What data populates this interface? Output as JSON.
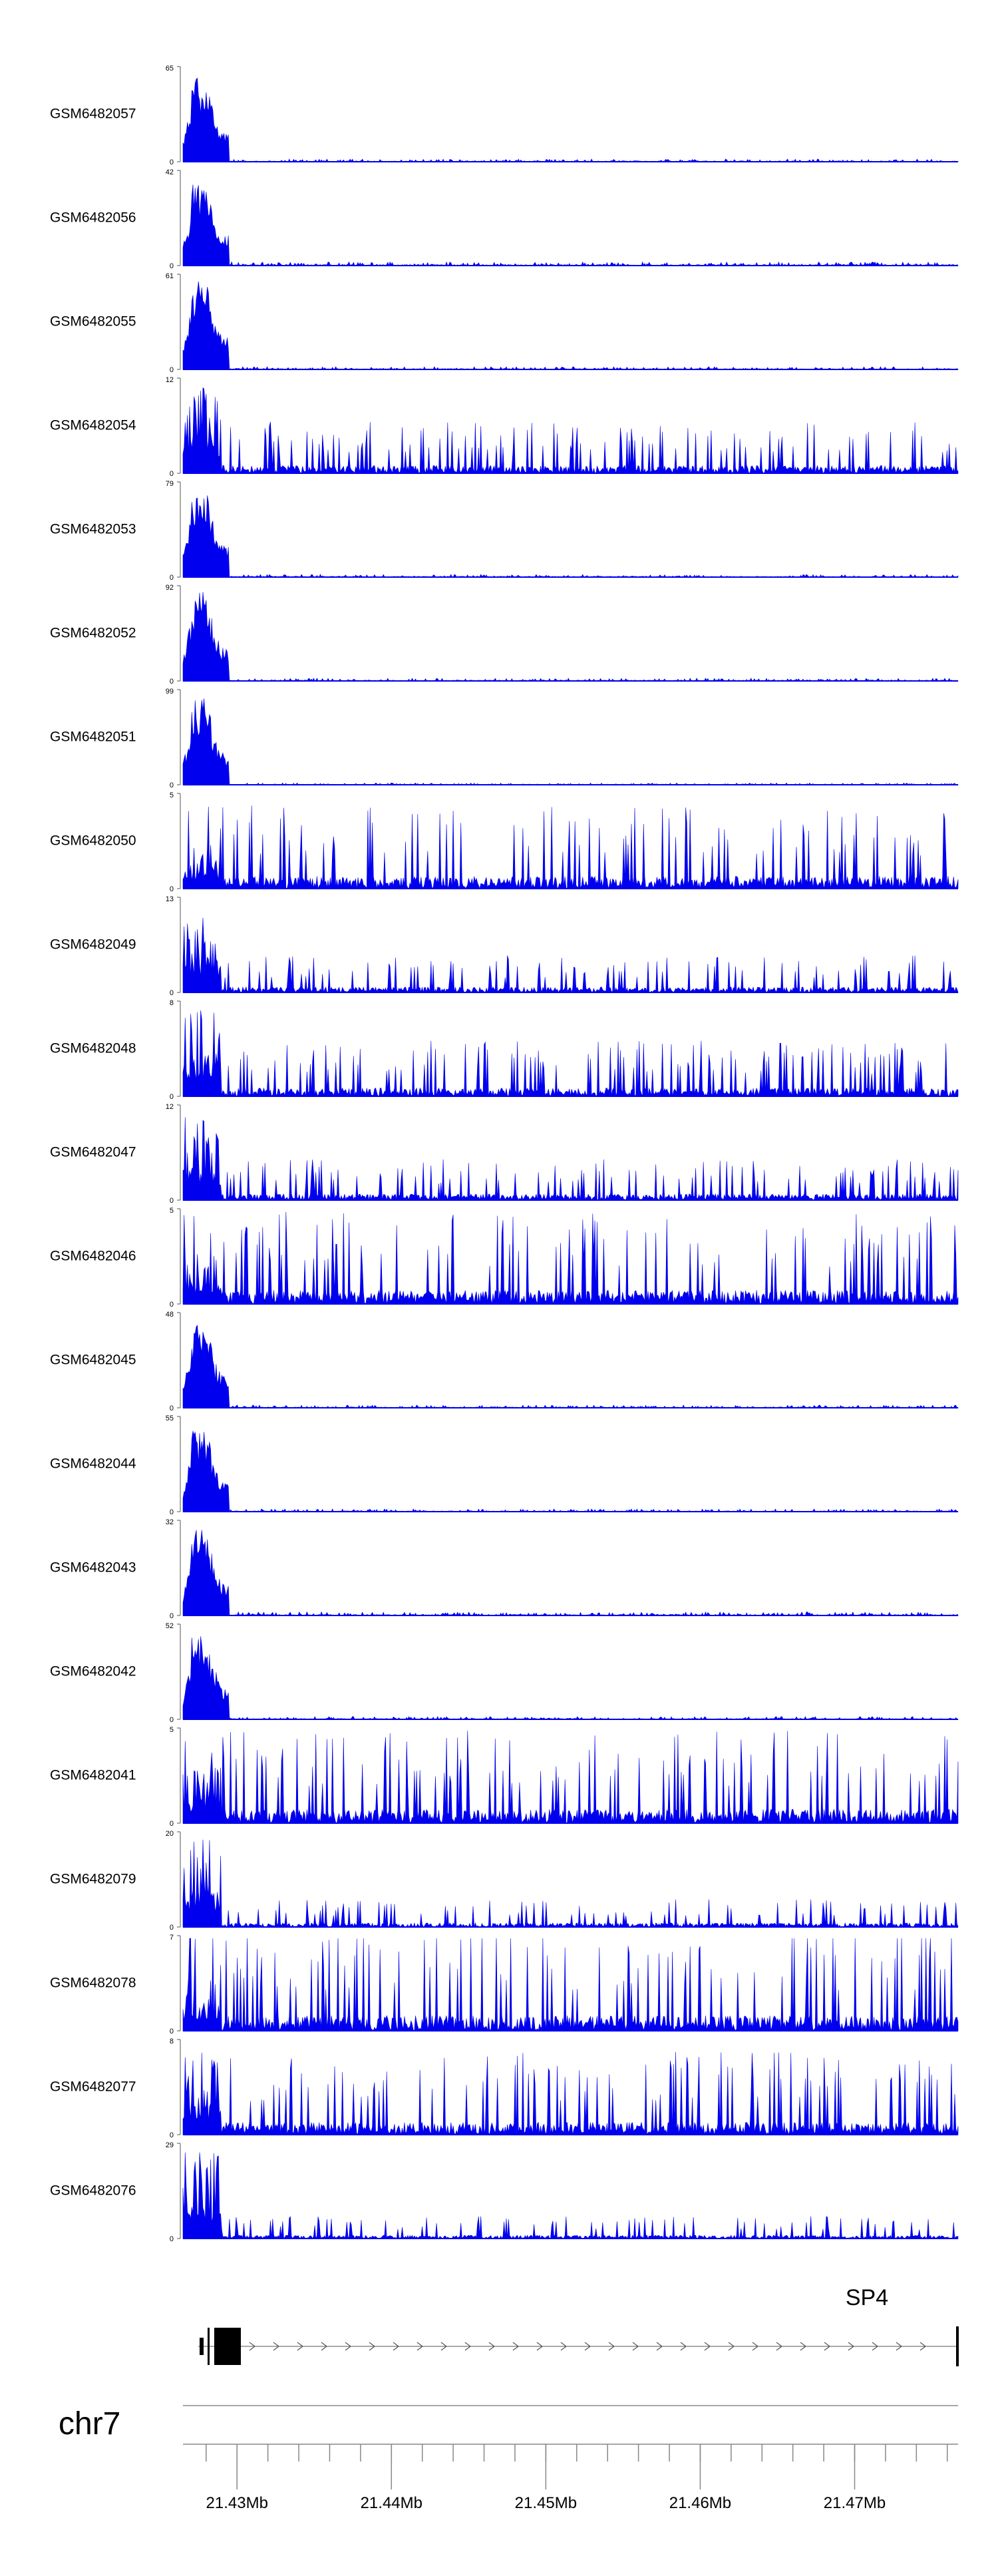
{
  "chart_data": {
    "type": "area",
    "color": "#0000ee",
    "region": {
      "chrom": "chr7",
      "start_mb": 21.4265,
      "end_mb": 21.4767
    },
    "tracks": [
      {
        "name": "GSM6482057",
        "ymax": 65,
        "pattern": "peak",
        "peak_frac": 0.9,
        "baseline_frac": 0.03
      },
      {
        "name": "GSM6482056",
        "ymax": 42,
        "pattern": "peak",
        "peak_frac": 0.9,
        "baseline_frac": 0.04
      },
      {
        "name": "GSM6482055",
        "ymax": 61,
        "pattern": "peak",
        "peak_frac": 0.95,
        "baseline_frac": 0.03
      },
      {
        "name": "GSM6482054",
        "ymax": 12,
        "pattern": "noisy",
        "peak_frac": 0.95,
        "baseline_frac": 0.28
      },
      {
        "name": "GSM6482053",
        "ymax": 79,
        "pattern": "peak",
        "peak_frac": 0.95,
        "baseline_frac": 0.03
      },
      {
        "name": "GSM6482052",
        "ymax": 92,
        "pattern": "peak",
        "peak_frac": 0.95,
        "baseline_frac": 0.03
      },
      {
        "name": "GSM6482051",
        "ymax": 99,
        "pattern": "peak",
        "peak_frac": 0.95,
        "baseline_frac": 0.02
      },
      {
        "name": "GSM6482050",
        "ymax": 5,
        "pattern": "noisy",
        "peak_frac": 0.5,
        "baseline_frac": 0.45
      },
      {
        "name": "GSM6482049",
        "ymax": 13,
        "pattern": "noisy",
        "peak_frac": 0.95,
        "baseline_frac": 0.2
      },
      {
        "name": "GSM6482048",
        "ymax": 8,
        "pattern": "noisy",
        "peak_frac": 0.95,
        "baseline_frac": 0.3
      },
      {
        "name": "GSM6482047",
        "ymax": 12,
        "pattern": "noisy",
        "peak_frac": 0.95,
        "baseline_frac": 0.22
      },
      {
        "name": "GSM6482046",
        "ymax": 5,
        "pattern": "noisy",
        "peak_frac": 0.55,
        "baseline_frac": 0.5
      },
      {
        "name": "GSM6482045",
        "ymax": 48,
        "pattern": "peak",
        "peak_frac": 0.92,
        "baseline_frac": 0.03
      },
      {
        "name": "GSM6482044",
        "ymax": 55,
        "pattern": "peak",
        "peak_frac": 0.92,
        "baseline_frac": 0.03
      },
      {
        "name": "GSM6482043",
        "ymax": 32,
        "pattern": "peak",
        "peak_frac": 0.95,
        "baseline_frac": 0.04
      },
      {
        "name": "GSM6482042",
        "ymax": 52,
        "pattern": "peak",
        "peak_frac": 0.95,
        "baseline_frac": 0.03
      },
      {
        "name": "GSM6482041",
        "ymax": 5,
        "pattern": "noisy",
        "peak_frac": 0.6,
        "baseline_frac": 0.5
      },
      {
        "name": "GSM6482079",
        "ymax": 20,
        "pattern": "noisy",
        "peak_frac": 0.95,
        "baseline_frac": 0.15
      },
      {
        "name": "GSM6482078",
        "ymax": 7,
        "pattern": "noisy",
        "peak_frac": 0.55,
        "baseline_frac": 0.55
      },
      {
        "name": "GSM6482077",
        "ymax": 8,
        "pattern": "noisy",
        "peak_frac": 0.85,
        "baseline_frac": 0.45
      },
      {
        "name": "GSM6482076",
        "ymax": 29,
        "pattern": "noisy",
        "peak_frac": 0.95,
        "baseline_frac": 0.12
      }
    ],
    "gene": {
      "name": "SP4",
      "strand": "+"
    },
    "axis": {
      "chrom_label": "chr7",
      "ticks": [
        {
          "mb": 21.43,
          "label": "21.43Mb"
        },
        {
          "mb": 21.44,
          "label": "21.44Mb"
        },
        {
          "mb": 21.45,
          "label": "21.45Mb"
        },
        {
          "mb": 21.46,
          "label": "21.46Mb"
        },
        {
          "mb": 21.47,
          "label": "21.47Mb"
        }
      ]
    }
  }
}
